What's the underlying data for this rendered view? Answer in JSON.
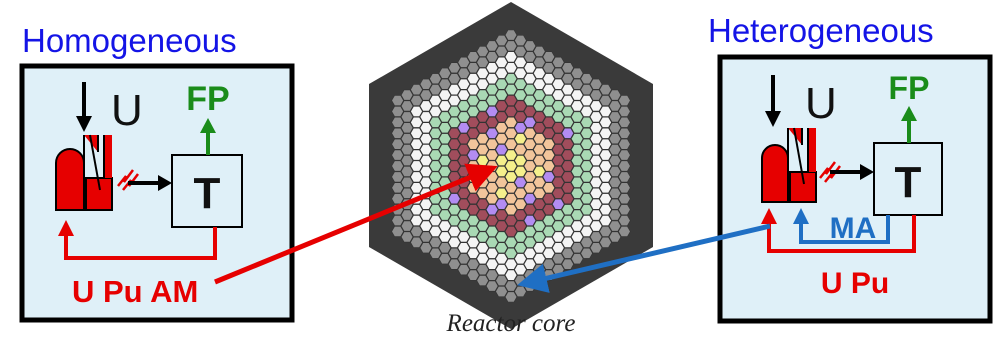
{
  "left_panel": {
    "title": "Homogeneous",
    "element_label": "U",
    "fp_label": "FP",
    "treatment_label": "T",
    "recycle_label": "U Pu AM"
  },
  "core": {
    "label": "Reactor core"
  },
  "right_panel": {
    "title": "Heterogeneous",
    "element_label": "U",
    "fp_label": "FP",
    "treatment_label": "T",
    "ma_label": "MA",
    "recycle_label": "U Pu"
  },
  "colors": {
    "title_blue": "#1414e6",
    "panel_fill": "#dff0f8",
    "reactor_red": "#e60000",
    "fp_green": "#1a8c1a",
    "ma_blue": "#1f6fc4",
    "ring_outer": "#8f8f8f",
    "ring_white": "#f4f4f4",
    "ring_green": "#a9d9b4",
    "ring_mauve": "#a14d5c",
    "ring_peach": "#f2c59b",
    "ring_yellow": "#f5f08c",
    "ring_purple": "#b38cf2"
  }
}
